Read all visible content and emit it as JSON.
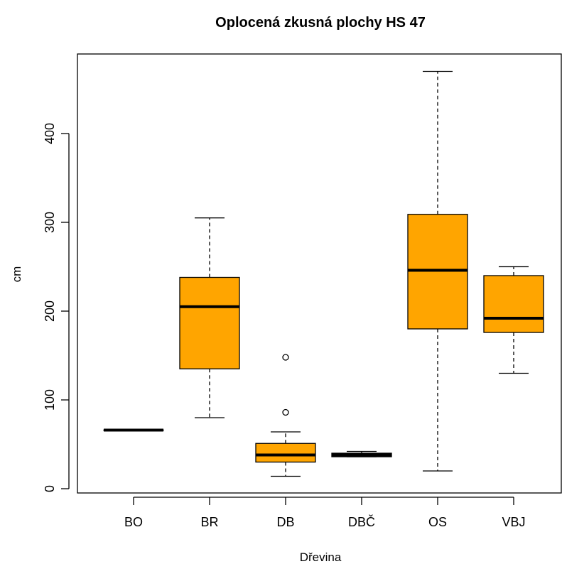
{
  "chart_data": {
    "type": "box",
    "title": "Oplocená zkusná plochy HS 47",
    "xlabel": "Dřevina",
    "ylabel": "cm",
    "categories": [
      "BO",
      "BR",
      "DB",
      "DBČ",
      "OS",
      "VBJ"
    ],
    "ylim": [
      0,
      470
    ],
    "yticks": [
      0,
      100,
      200,
      300,
      400
    ],
    "fill_color": "#FFA500",
    "boxes": [
      {
        "category": "BO",
        "whisker_low": 66,
        "q1": 66,
        "median": 66,
        "q3": 66,
        "whisker_high": 66,
        "outliers": []
      },
      {
        "category": "BR",
        "whisker_low": 80,
        "q1": 135,
        "median": 205,
        "q3": 238,
        "whisker_high": 305,
        "outliers": []
      },
      {
        "category": "DB",
        "whisker_low": 14,
        "q1": 30,
        "median": 38,
        "q3": 51,
        "whisker_high": 64,
        "outliers": [
          86,
          148
        ]
      },
      {
        "category": "DBČ",
        "whisker_low": 36,
        "q1": 36,
        "median": 38,
        "q3": 40,
        "whisker_high": 42,
        "outliers": []
      },
      {
        "category": "OS",
        "whisker_low": 20,
        "q1": 180,
        "median": 246,
        "q3": 309,
        "whisker_high": 470,
        "outliers": []
      },
      {
        "category": "VBJ",
        "whisker_low": 130,
        "q1": 176,
        "median": 192,
        "q3": 240,
        "whisker_high": 250,
        "outliers": []
      }
    ]
  }
}
